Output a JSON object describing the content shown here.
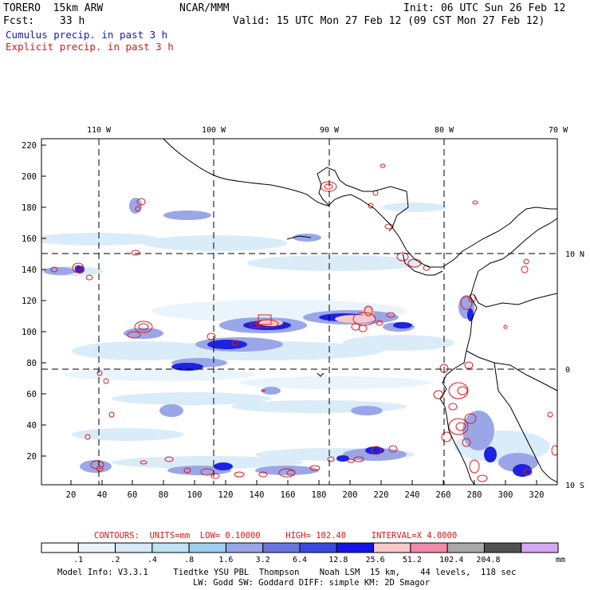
{
  "header": {
    "model": "TORERO  15km ARW",
    "fcst_label": "Fcst:",
    "fcst_value": "33 h",
    "org": "NCAR/MMM",
    "init": "Init: 06 UTC Sun 26 Feb 12",
    "valid": "Valid: 15 UTC Mon 27 Feb 12 (09 CST Mon 27 Feb 12)"
  },
  "legend": {
    "cumulus": "Cumulus precip. in past 3 h",
    "explicit": "Explicit precip. in past 3 h"
  },
  "map": {
    "top_lon_labels": [
      "110 W",
      "100 W",
      "90 W",
      "80 W",
      "70 W"
    ],
    "right_lat_labels": [
      "10 N",
      "0",
      "10 S"
    ],
    "left_ticks": [
      "220",
      "200",
      "180",
      "160",
      "140",
      "120",
      "100",
      "80",
      "60",
      "40",
      "20"
    ],
    "bottom_ticks": [
      "20",
      "40",
      "60",
      "80",
      "100",
      "120",
      "140",
      "160",
      "180",
      "200",
      "220",
      "240",
      "260",
      "280",
      "300",
      "320"
    ]
  },
  "contours": {
    "label": "CONTOURS:",
    "units": "UNITS=mm",
    "low": "LOW= 0.10000",
    "high": "HIGH= 102.40",
    "interval": "INTERVAL=X 4.0000"
  },
  "colorbar": {
    "colors": [
      "#ffffff",
      "#eaf4fc",
      "#d6eaf8",
      "#bfe2f4",
      "#9fd0ee",
      "#9aa6e8",
      "#6b75e2",
      "#3b49e0",
      "#1414e6",
      "#f8c8c8",
      "#f28aa8",
      "#a8a8a8",
      "#505050",
      "#d6a8f4"
    ],
    "labels": [
      ".1",
      ".2",
      ".4",
      ".8",
      "1.6",
      "3.2",
      "6.4",
      "12.8",
      "25.6",
      "51.2",
      "102.4",
      "204.8"
    ],
    "units": "mm"
  },
  "info": {
    "line1": "Model Info: V3.3.1     Tiedtke YSU PBL  Thompson    Noah LSM  15 km,    44 levels,  118 sec",
    "line2": "LW: Godd SW: Goddard DIFF: simple KM: 2D Smagor"
  }
}
